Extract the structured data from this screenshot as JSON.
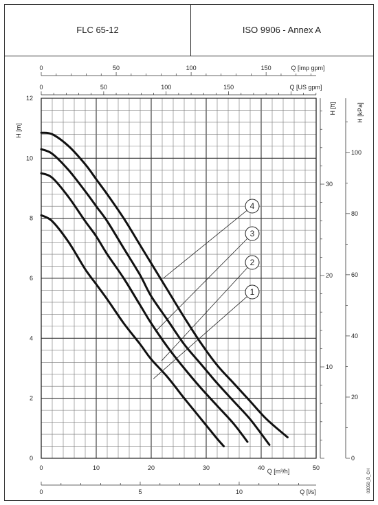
{
  "header": {
    "model": "FLC 65-12",
    "standard": "ISO 9906 - Annex A"
  },
  "chart_data": {
    "type": "line",
    "title": "FLC 65-12",
    "xlabel": "Q [m³/h]",
    "ylabel": "H [m]",
    "xlim": [
      0,
      50
    ],
    "ylim": [
      0,
      12
    ],
    "grid": true,
    "x_ticks": [
      0,
      10,
      20,
      30,
      40,
      50
    ],
    "y_ticks": [
      0,
      2,
      4,
      6,
      8,
      10,
      12
    ],
    "secondary_axes": {
      "top_imp": {
        "label": "Q [imp gpm]",
        "lim": [
          0,
          183.4
        ],
        "ticks": [
          0,
          50,
          100,
          150
        ]
      },
      "top_us": {
        "label": "Q [US gpm]",
        "lim": [
          0,
          220.1
        ],
        "ticks": [
          0,
          50,
          100,
          150
        ]
      },
      "bottom_ls": {
        "label": "Q [l/s]",
        "lim": [
          0,
          13.89
        ],
        "ticks": [
          0,
          5,
          10
        ]
      },
      "right_ft": {
        "label": "H [ft]",
        "lim": [
          0,
          39.4
        ],
        "ticks": [
          10,
          20,
          30
        ]
      },
      "right_kpa": {
        "label": "H [kPa]",
        "lim": [
          0,
          117.7
        ],
        "ticks": [
          0,
          20,
          40,
          60,
          80,
          100
        ]
      }
    },
    "series": [
      {
        "name": "1",
        "x": [
          0,
          2,
          5,
          8,
          10,
          12,
          15,
          18,
          20,
          23,
          26,
          28,
          30,
          32,
          33.2
        ],
        "y": [
          8.1,
          7.9,
          7.2,
          6.3,
          5.8,
          5.3,
          4.5,
          3.8,
          3.3,
          2.7,
          2.0,
          1.55,
          1.1,
          0.65,
          0.4
        ]
      },
      {
        "name": "2",
        "x": [
          0,
          2,
          5,
          8,
          10,
          12,
          15,
          18,
          20,
          23,
          26,
          29,
          32,
          35,
          37.5
        ],
        "y": [
          9.5,
          9.35,
          8.7,
          7.9,
          7.4,
          6.8,
          6.0,
          5.1,
          4.5,
          3.7,
          3.0,
          2.35,
          1.75,
          1.15,
          0.55
        ]
      },
      {
        "name": "3",
        "x": [
          0,
          2,
          5,
          8,
          10,
          12,
          15,
          18,
          20,
          23,
          26,
          29,
          32,
          35,
          38,
          41.5
        ],
        "y": [
          10.3,
          10.15,
          9.6,
          8.9,
          8.4,
          7.9,
          7.0,
          6.1,
          5.4,
          4.6,
          3.8,
          3.15,
          2.5,
          1.9,
          1.3,
          0.45
        ]
      },
      {
        "name": "4",
        "x": [
          0,
          2,
          5,
          8,
          10,
          12,
          15,
          18,
          20,
          23,
          26,
          29,
          32,
          35,
          38,
          41,
          44.8
        ],
        "y": [
          10.85,
          10.8,
          10.4,
          9.8,
          9.3,
          8.8,
          8.0,
          7.1,
          6.5,
          5.6,
          4.7,
          3.85,
          3.1,
          2.5,
          1.9,
          1.3,
          0.7
        ]
      }
    ],
    "annotations": [
      {
        "label": "4",
        "anchor": [
          22.2,
          6.0
        ]
      },
      {
        "label": "3",
        "anchor": [
          20.9,
          4.25
        ]
      },
      {
        "label": "2",
        "anchor": [
          21.9,
          3.25
        ]
      },
      {
        "label": "1",
        "anchor": [
          20.4,
          2.65
        ]
      }
    ],
    "side_code": "03050_B_CH"
  }
}
